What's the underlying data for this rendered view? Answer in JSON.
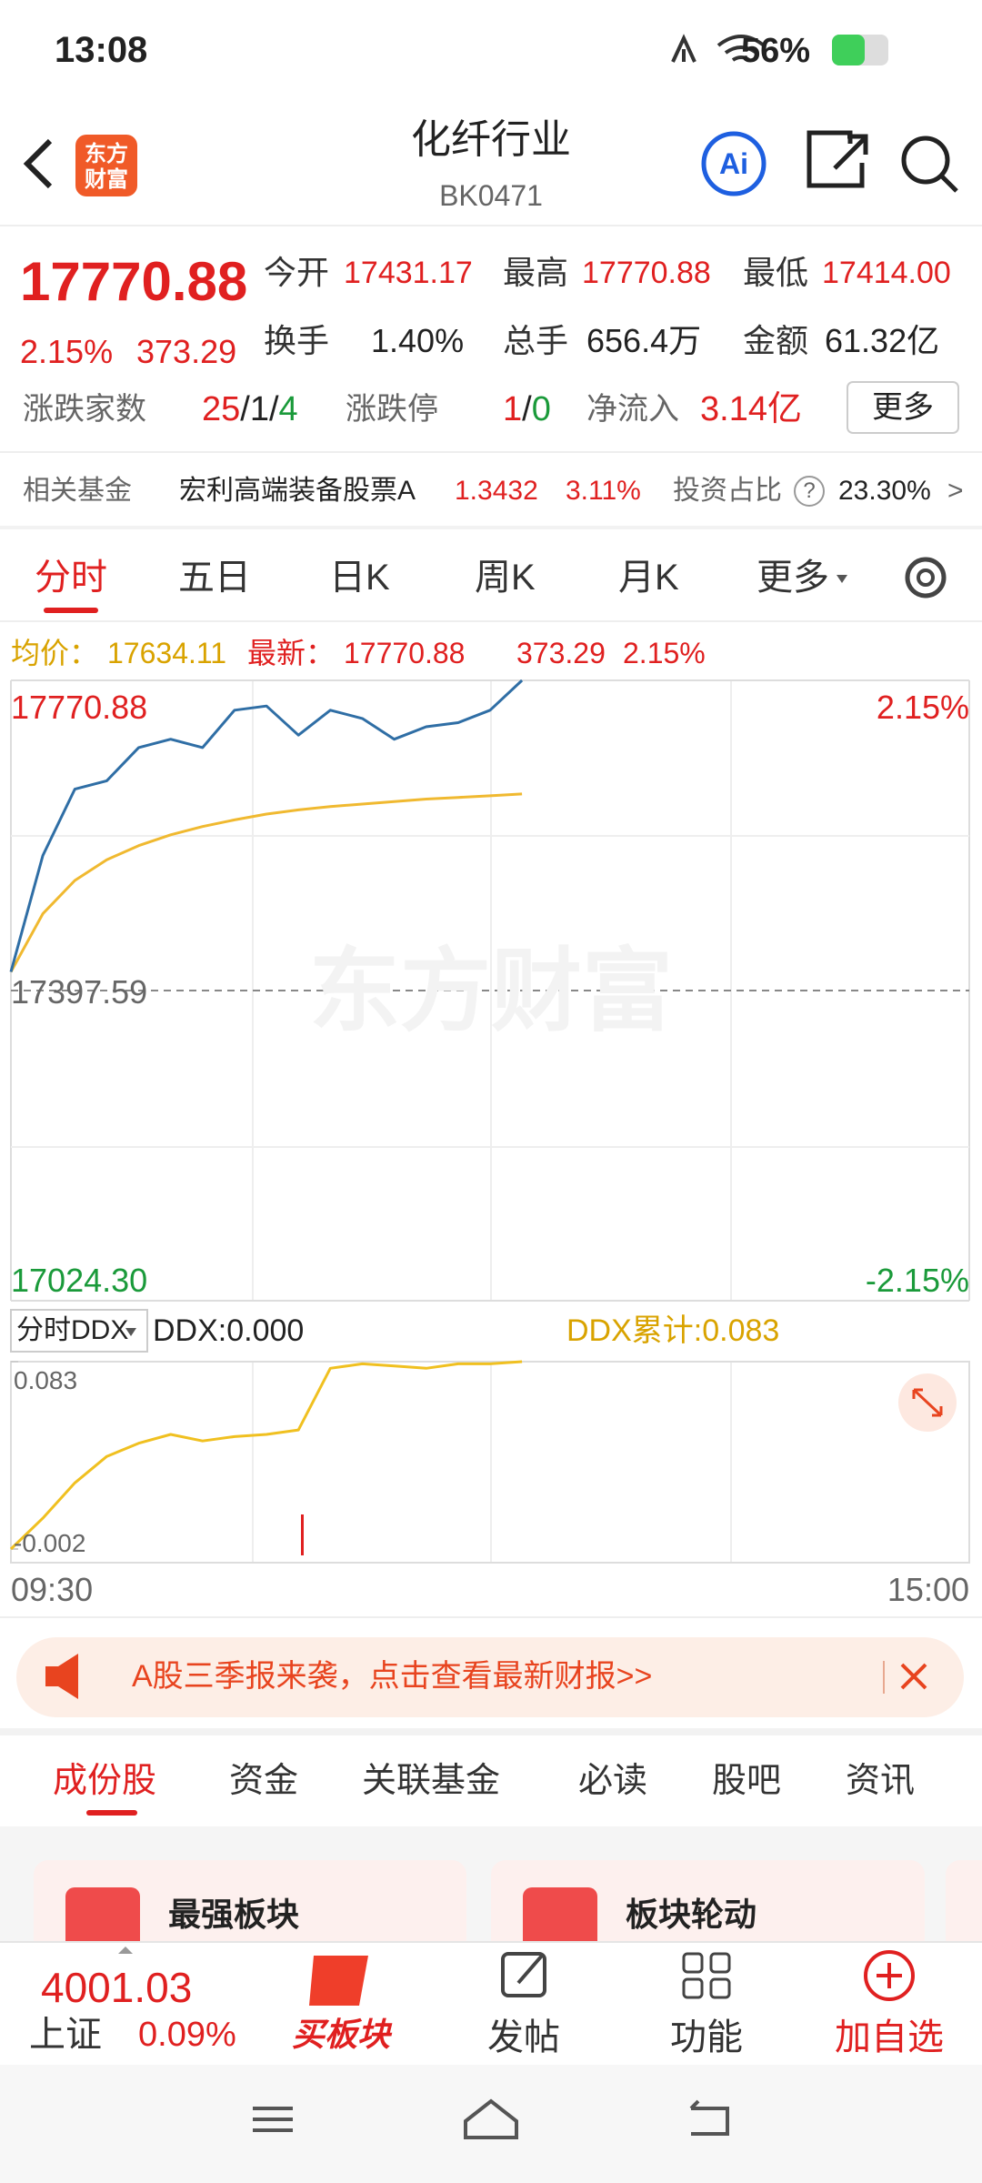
{
  "status_bar": {
    "time": "13:08",
    "battery": "56%"
  },
  "header": {
    "title": "化纤行业",
    "code": "BK0471",
    "logo": "东方财富",
    "ai": "Ai"
  },
  "quote": {
    "price": "17770.88",
    "change_pct": "2.15%",
    "change": "373.29",
    "open_label": "今开",
    "open": "17431.17",
    "high_label": "最高",
    "high": "17770.88",
    "low_label": "最低",
    "low": "17414.00",
    "turnover_label": "换手",
    "turnover": "1.40%",
    "volume_label": "总手",
    "volume": "656.4万",
    "amount_label": "金额",
    "amount": "61.32亿",
    "breadth_label": "涨跌家数",
    "breadth": [
      "25",
      "1",
      "4"
    ],
    "separator": "/",
    "limit_label": "涨跌停",
    "limit": [
      "1",
      "0"
    ],
    "inflow_label": "净流入",
    "inflow": "3.14亿",
    "more": "更多"
  },
  "fund": {
    "label": "相关基金",
    "name": "宏利高端装备股票A",
    "nav": "1.3432",
    "change": "3.11%",
    "weight_label": "投资占比",
    "help": "?",
    "weight": "23.30%",
    "arrow": ">"
  },
  "tabs": [
    "分时",
    "五日",
    "日K",
    "周K",
    "月K",
    "更多"
  ],
  "chart": {
    "avg_label": "均价：",
    "avg": "17634.11",
    "latest_label": "最新：",
    "latest": "17770.88",
    "change": "373.29",
    "change_pct": "2.15%",
    "yticks": [
      {
        "value": 17770.88,
        "label": "17770.88"
      },
      {
        "value": 17397.59,
        "label": "17397.59"
      },
      {
        "value": 17024.3,
        "label": "17024.30"
      }
    ],
    "pct_top": "2.15%",
    "pct_bottom": "-2.15%",
    "watermark": "东方财富",
    "price_values": [
      17420,
      17560,
      17640,
      17650,
      17690,
      17700,
      17690,
      17735,
      17740,
      17705,
      17735,
      17725,
      17700,
      17715,
      17720,
      17735,
      17770.88
    ],
    "avg_values": [
      17420,
      17490,
      17530,
      17555,
      17572,
      17585,
      17595,
      17603,
      17610,
      17615,
      17619,
      17622,
      17625,
      17628,
      17630,
      17632,
      17634.11
    ],
    "x_labels": [
      "09:30",
      "15:00"
    ]
  },
  "ddx": {
    "selector": "分时DDX",
    "value_label": "DDX:0.000",
    "total_label": "DDX累计:0.083",
    "yticks": [
      {
        "value": 0.083,
        "label": "0.083"
      },
      {
        "value": -0.002,
        "label": "-0.002"
      }
    ],
    "values": [
      -0.002,
      0.012,
      0.028,
      0.04,
      0.046,
      0.05,
      0.047,
      0.049,
      0.05,
      0.052,
      0.08,
      0.082,
      0.081,
      0.08,
      0.082,
      0.082,
      0.083
    ]
  },
  "banner": {
    "text": "A股三季报来袭，点击查看最新财报>>"
  },
  "section_tabs": [
    "成份股",
    "资金",
    "关联基金",
    "必读",
    "股吧",
    "资讯"
  ],
  "cards": [
    "最强板块",
    "板块轮动"
  ],
  "bottom_bar": {
    "index_value": "4001.03",
    "index_name": "上证",
    "index_change": "0.09%",
    "buy": "买板块",
    "post": "发帖",
    "functions": "功能",
    "add": "加自选"
  }
}
